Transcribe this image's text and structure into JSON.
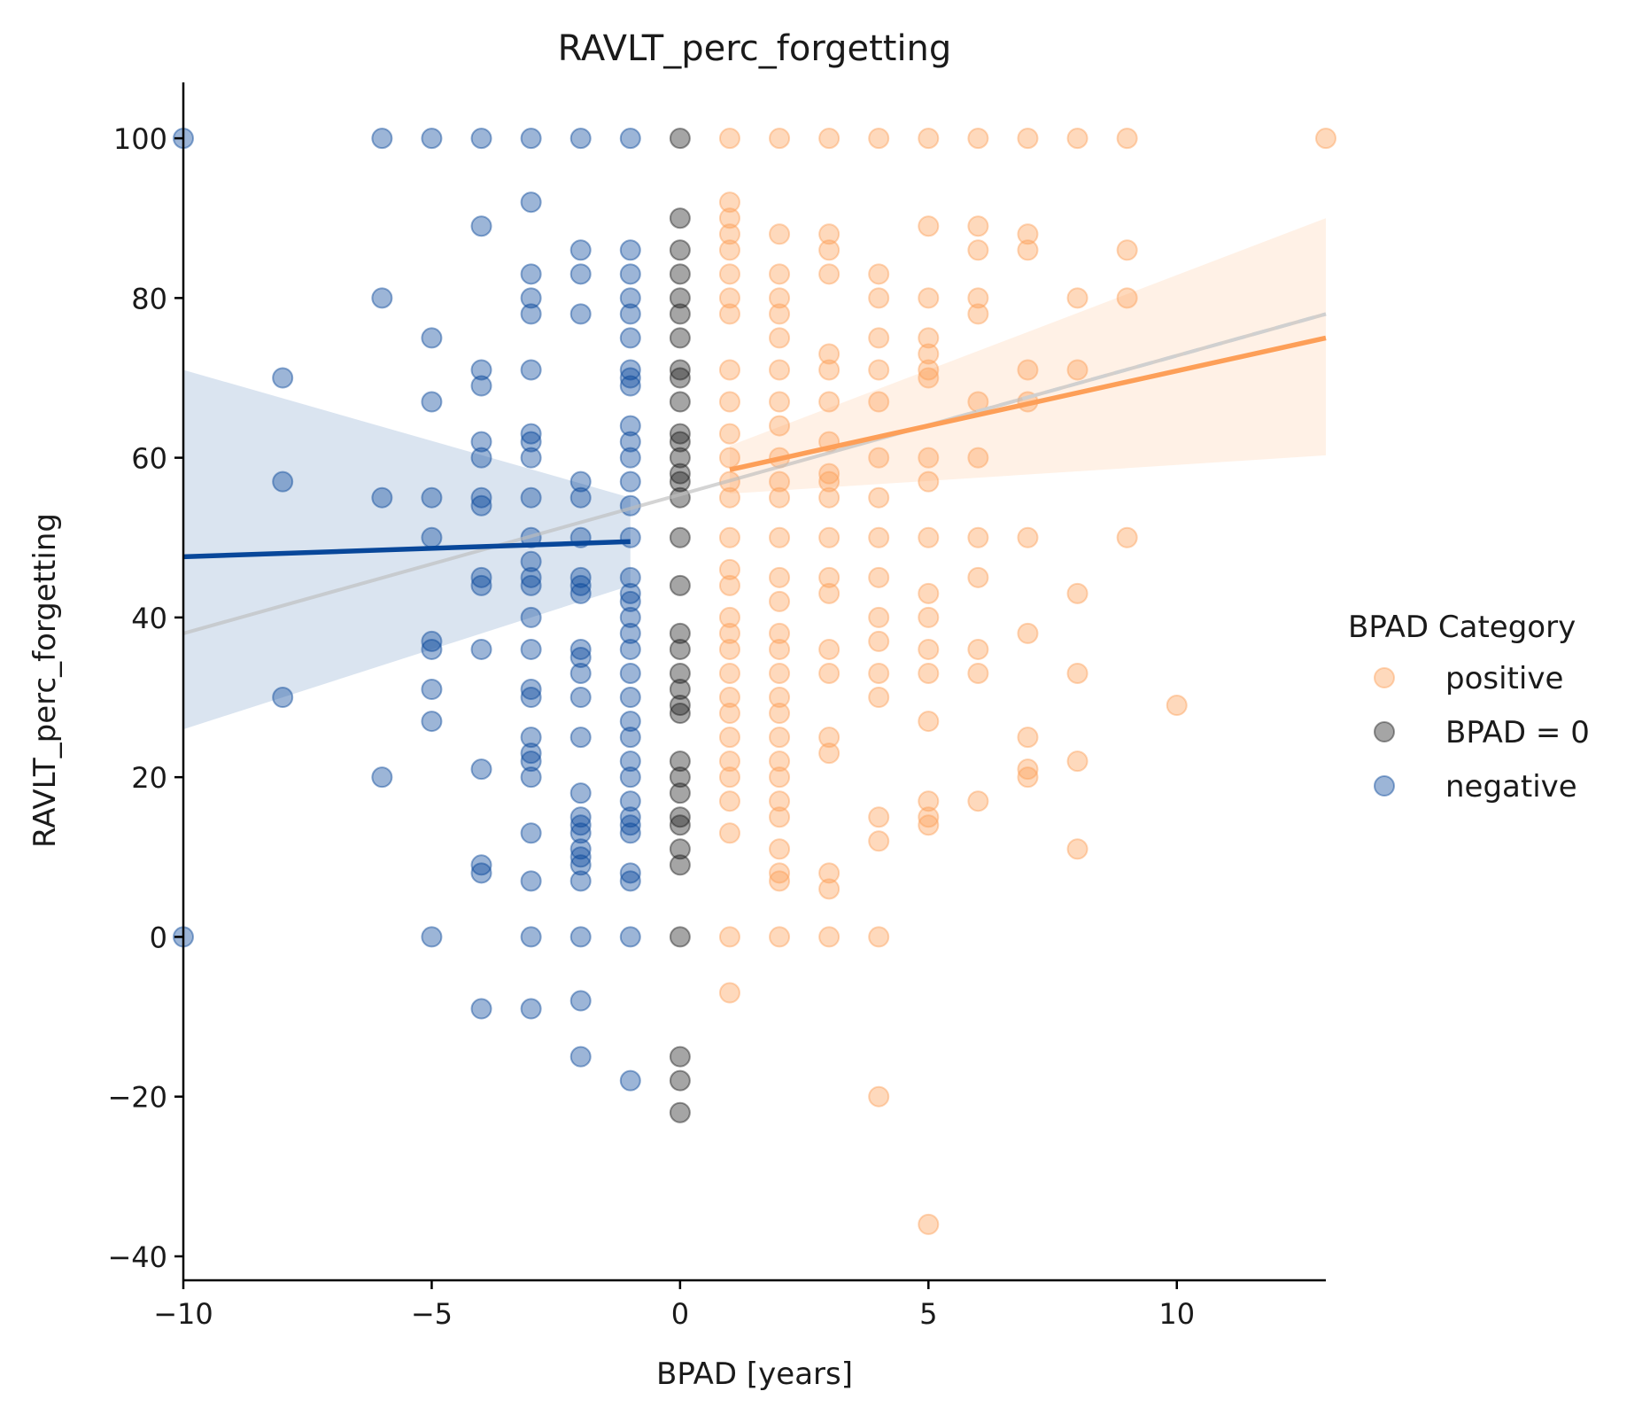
{
  "chart_data": {
    "type": "scatter",
    "title": "RAVLT_perc_forgetting",
    "xlabel": "BPAD [years]",
    "ylabel": "RAVLT_perc_forgetting",
    "xlim": [
      -10,
      13
    ],
    "ylim": [
      -43,
      107
    ],
    "x_ticks": [
      -10,
      -5,
      0,
      5,
      10
    ],
    "x_tick_labels": [
      "−10",
      "−5",
      "0",
      "5",
      "10"
    ],
    "y_ticks": [
      -40,
      -20,
      0,
      20,
      40,
      60,
      80,
      100
    ],
    "y_tick_labels": [
      "−40",
      "−20",
      "0",
      "20",
      "40",
      "60",
      "80",
      "100"
    ],
    "grid": false,
    "legend": {
      "title": "BPAD Category",
      "placement": "right"
    },
    "series": [
      {
        "name": "positive",
        "color": "#fd9f58",
        "points": [
          [
            1,
            100
          ],
          [
            1,
            92
          ],
          [
            1,
            90
          ],
          [
            1,
            88
          ],
          [
            1,
            86
          ],
          [
            1,
            83
          ],
          [
            1,
            80
          ],
          [
            1,
            78
          ],
          [
            1,
            71
          ],
          [
            1,
            67
          ],
          [
            1,
            63
          ],
          [
            1,
            60
          ],
          [
            1,
            57
          ],
          [
            1,
            55
          ],
          [
            1,
            50
          ],
          [
            1,
            46
          ],
          [
            1,
            44
          ],
          [
            1,
            40
          ],
          [
            1,
            38
          ],
          [
            1,
            36
          ],
          [
            1,
            33
          ],
          [
            1,
            30
          ],
          [
            1,
            28
          ],
          [
            1,
            25
          ],
          [
            1,
            22
          ],
          [
            1,
            20
          ],
          [
            1,
            17
          ],
          [
            1,
            13
          ],
          [
            1,
            0
          ],
          [
            1,
            -7
          ],
          [
            2,
            100
          ],
          [
            2,
            88
          ],
          [
            2,
            83
          ],
          [
            2,
            80
          ],
          [
            2,
            78
          ],
          [
            2,
            75
          ],
          [
            2,
            71
          ],
          [
            2,
            67
          ],
          [
            2,
            64
          ],
          [
            2,
            60
          ],
          [
            2,
            57
          ],
          [
            2,
            55
          ],
          [
            2,
            50
          ],
          [
            2,
            45
          ],
          [
            2,
            42
          ],
          [
            2,
            38
          ],
          [
            2,
            36
          ],
          [
            2,
            33
          ],
          [
            2,
            30
          ],
          [
            2,
            28
          ],
          [
            2,
            25
          ],
          [
            2,
            22
          ],
          [
            2,
            20
          ],
          [
            2,
            17
          ],
          [
            2,
            15
          ],
          [
            2,
            11
          ],
          [
            2,
            8
          ],
          [
            2,
            7
          ],
          [
            2,
            0
          ],
          [
            3,
            100
          ],
          [
            3,
            88
          ],
          [
            3,
            86
          ],
          [
            3,
            83
          ],
          [
            3,
            73
          ],
          [
            3,
            71
          ],
          [
            3,
            67
          ],
          [
            3,
            62
          ],
          [
            3,
            58
          ],
          [
            3,
            57
          ],
          [
            3,
            55
          ],
          [
            3,
            50
          ],
          [
            3,
            45
          ],
          [
            3,
            43
          ],
          [
            3,
            36
          ],
          [
            3,
            33
          ],
          [
            3,
            25
          ],
          [
            3,
            23
          ],
          [
            3,
            8
          ],
          [
            3,
            6
          ],
          [
            3,
            0
          ],
          [
            4,
            100
          ],
          [
            4,
            83
          ],
          [
            4,
            80
          ],
          [
            4,
            75
          ],
          [
            4,
            71
          ],
          [
            4,
            67
          ],
          [
            4,
            60
          ],
          [
            4,
            55
          ],
          [
            4,
            50
          ],
          [
            4,
            45
          ],
          [
            4,
            40
          ],
          [
            4,
            37
          ],
          [
            4,
            33
          ],
          [
            4,
            30
          ],
          [
            4,
            15
          ],
          [
            4,
            12
          ],
          [
            4,
            0
          ],
          [
            4,
            -20
          ],
          [
            5,
            100
          ],
          [
            5,
            89
          ],
          [
            5,
            80
          ],
          [
            5,
            75
          ],
          [
            5,
            73
          ],
          [
            5,
            71
          ],
          [
            5,
            70
          ],
          [
            5,
            60
          ],
          [
            5,
            57
          ],
          [
            5,
            50
          ],
          [
            5,
            43
          ],
          [
            5,
            40
          ],
          [
            5,
            36
          ],
          [
            5,
            33
          ],
          [
            5,
            27
          ],
          [
            5,
            17
          ],
          [
            5,
            15
          ],
          [
            5,
            14
          ],
          [
            5,
            -36
          ],
          [
            6,
            100
          ],
          [
            6,
            89
          ],
          [
            6,
            86
          ],
          [
            6,
            80
          ],
          [
            6,
            78
          ],
          [
            6,
            67
          ],
          [
            6,
            60
          ],
          [
            6,
            50
          ],
          [
            6,
            45
          ],
          [
            6,
            36
          ],
          [
            6,
            33
          ],
          [
            6,
            17
          ],
          [
            7,
            100
          ],
          [
            7,
            88
          ],
          [
            7,
            86
          ],
          [
            7,
            71
          ],
          [
            7,
            67
          ],
          [
            7,
            50
          ],
          [
            7,
            38
          ],
          [
            7,
            25
          ],
          [
            7,
            21
          ],
          [
            7,
            20
          ],
          [
            8,
            100
          ],
          [
            8,
            80
          ],
          [
            8,
            71
          ],
          [
            8,
            43
          ],
          [
            8,
            33
          ],
          [
            8,
            22
          ],
          [
            8,
            11
          ],
          [
            9,
            100
          ],
          [
            9,
            86
          ],
          [
            9,
            80
          ],
          [
            9,
            50
          ],
          [
            10,
            29
          ],
          [
            13,
            100
          ]
        ],
        "fit": {
          "x": [
            1,
            13
          ],
          "y": [
            58.5,
            75.0
          ],
          "ci_low": [
            55.5,
            60.3
          ],
          "ci_high": [
            61.5,
            90.0
          ]
        }
      },
      {
        "name": "BPAD = 0",
        "color": "#1f1f1f",
        "points": [
          [
            0,
            100
          ],
          [
            0,
            90
          ],
          [
            0,
            86
          ],
          [
            0,
            83
          ],
          [
            0,
            80
          ],
          [
            0,
            78
          ],
          [
            0,
            75
          ],
          [
            0,
            71
          ],
          [
            0,
            70
          ],
          [
            0,
            67
          ],
          [
            0,
            63
          ],
          [
            0,
            62
          ],
          [
            0,
            60
          ],
          [
            0,
            58
          ],
          [
            0,
            57
          ],
          [
            0,
            55
          ],
          [
            0,
            50
          ],
          [
            0,
            44
          ],
          [
            0,
            38
          ],
          [
            0,
            36
          ],
          [
            0,
            33
          ],
          [
            0,
            31
          ],
          [
            0,
            29
          ],
          [
            0,
            28
          ],
          [
            0,
            22
          ],
          [
            0,
            20
          ],
          [
            0,
            18
          ],
          [
            0,
            15
          ],
          [
            0,
            14
          ],
          [
            0,
            11
          ],
          [
            0,
            9
          ],
          [
            0,
            0
          ],
          [
            0,
            -15
          ],
          [
            0,
            -18
          ],
          [
            0,
            -22
          ]
        ]
      },
      {
        "name": "negative",
        "color": "#08479a",
        "points": [
          [
            -10,
            100
          ],
          [
            -10,
            0
          ],
          [
            -8,
            70
          ],
          [
            -8,
            57
          ],
          [
            -8,
            30
          ],
          [
            -6,
            100
          ],
          [
            -6,
            80
          ],
          [
            -6,
            55
          ],
          [
            -6,
            20
          ],
          [
            -5,
            100
          ],
          [
            -5,
            75
          ],
          [
            -5,
            67
          ],
          [
            -5,
            55
          ],
          [
            -5,
            50
          ],
          [
            -5,
            37
          ],
          [
            -5,
            36
          ],
          [
            -5,
            31
          ],
          [
            -5,
            27
          ],
          [
            -5,
            0
          ],
          [
            -4,
            100
          ],
          [
            -4,
            89
          ],
          [
            -4,
            71
          ],
          [
            -4,
            69
          ],
          [
            -4,
            62
          ],
          [
            -4,
            60
          ],
          [
            -4,
            55
          ],
          [
            -4,
            54
          ],
          [
            -4,
            45
          ],
          [
            -4,
            44
          ],
          [
            -4,
            36
          ],
          [
            -4,
            21
          ],
          [
            -4,
            9
          ],
          [
            -4,
            8
          ],
          [
            -4,
            -9
          ],
          [
            -3,
            100
          ],
          [
            -3,
            92
          ],
          [
            -3,
            83
          ],
          [
            -3,
            80
          ],
          [
            -3,
            78
          ],
          [
            -3,
            71
          ],
          [
            -3,
            63
          ],
          [
            -3,
            62
          ],
          [
            -3,
            60
          ],
          [
            -3,
            55
          ],
          [
            -3,
            50
          ],
          [
            -3,
            47
          ],
          [
            -3,
            45
          ],
          [
            -3,
            44
          ],
          [
            -3,
            40
          ],
          [
            -3,
            36
          ],
          [
            -3,
            31
          ],
          [
            -3,
            30
          ],
          [
            -3,
            25
          ],
          [
            -3,
            23
          ],
          [
            -3,
            22
          ],
          [
            -3,
            20
          ],
          [
            -3,
            13
          ],
          [
            -3,
            7
          ],
          [
            -3,
            0
          ],
          [
            -3,
            -9
          ],
          [
            -2,
            100
          ],
          [
            -2,
            86
          ],
          [
            -2,
            83
          ],
          [
            -2,
            78
          ],
          [
            -2,
            57
          ],
          [
            -2,
            55
          ],
          [
            -2,
            50
          ],
          [
            -2,
            45
          ],
          [
            -2,
            44
          ],
          [
            -2,
            43
          ],
          [
            -2,
            36
          ],
          [
            -2,
            35
          ],
          [
            -2,
            33
          ],
          [
            -2,
            30
          ],
          [
            -2,
            25
          ],
          [
            -2,
            18
          ],
          [
            -2,
            15
          ],
          [
            -2,
            14
          ],
          [
            -2,
            13
          ],
          [
            -2,
            11
          ],
          [
            -2,
            10
          ],
          [
            -2,
            9
          ],
          [
            -2,
            7
          ],
          [
            -2,
            0
          ],
          [
            -2,
            -8
          ],
          [
            -2,
            -15
          ],
          [
            -1,
            100
          ],
          [
            -1,
            86
          ],
          [
            -1,
            83
          ],
          [
            -1,
            80
          ],
          [
            -1,
            78
          ],
          [
            -1,
            75
          ],
          [
            -1,
            71
          ],
          [
            -1,
            70
          ],
          [
            -1,
            69
          ],
          [
            -1,
            64
          ],
          [
            -1,
            62
          ],
          [
            -1,
            60
          ],
          [
            -1,
            57
          ],
          [
            -1,
            54
          ],
          [
            -1,
            50
          ],
          [
            -1,
            45
          ],
          [
            -1,
            43
          ],
          [
            -1,
            42
          ],
          [
            -1,
            40
          ],
          [
            -1,
            38
          ],
          [
            -1,
            36
          ],
          [
            -1,
            33
          ],
          [
            -1,
            30
          ],
          [
            -1,
            27
          ],
          [
            -1,
            25
          ],
          [
            -1,
            22
          ],
          [
            -1,
            20
          ],
          [
            -1,
            17
          ],
          [
            -1,
            15
          ],
          [
            -1,
            14
          ],
          [
            -1,
            13
          ],
          [
            -1,
            8
          ],
          [
            -1,
            7
          ],
          [
            -1,
            0
          ],
          [
            -1,
            -18
          ]
        ],
        "fit": {
          "x": [
            -10,
            -1
          ],
          "y": [
            47.6,
            49.5
          ],
          "ci_low": [
            26.0,
            44.0
          ],
          "ci_high": [
            71.0,
            55.0
          ]
        }
      }
    ],
    "overall_fit": {
      "color": "#bdbdbd",
      "x": [
        -10,
        13
      ],
      "y": [
        38.0,
        78.0
      ]
    }
  }
}
